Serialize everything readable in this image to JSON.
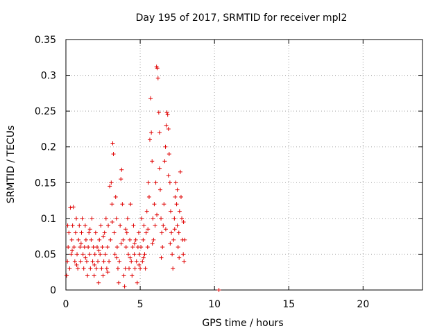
{
  "chart_data": {
    "type": "scatter",
    "title": "Day 195 of 2017, SRMTID for receiver mpl2",
    "xlabel": "GPS time / hours",
    "ylabel": "SRMTID / TECUs",
    "xlim": [
      0,
      24
    ],
    "ylim": [
      0,
      0.35
    ],
    "xticks": [
      0,
      5,
      10,
      15,
      20
    ],
    "xtick_labels": [
      "0",
      "5",
      "10",
      "15",
      "20"
    ],
    "yticks": [
      0,
      0.05,
      0.1,
      0.15,
      0.2,
      0.25,
      0.3,
      0.35
    ],
    "ytick_labels": [
      "0",
      "0.05",
      "0.1",
      "0.15",
      "0.2",
      "0.25",
      "0.3",
      "0.35"
    ],
    "grid": true,
    "marker": "+",
    "color": "#e00000",
    "series": [
      {
        "name": "SRMTID",
        "points": [
          [
            0.05,
            0.02
          ],
          [
            0.1,
            0.04
          ],
          [
            0.15,
            0.06
          ],
          [
            0.2,
            0.08
          ],
          [
            0.25,
            0.03
          ],
          [
            0.3,
            0.115
          ],
          [
            0.35,
            0.05
          ],
          [
            0.4,
            0.07
          ],
          [
            0.45,
            0.09
          ],
          [
            0.5,
            0.116
          ],
          [
            0.55,
            0.06
          ],
          [
            0.6,
            0.04
          ],
          [
            0.65,
            0.08
          ],
          [
            0.7,
            0.1
          ],
          [
            0.75,
            0.05
          ],
          [
            0.8,
            0.03
          ],
          [
            0.85,
            0.07
          ],
          [
            0.9,
            0.09
          ],
          [
            0.95,
            0.06
          ],
          [
            1.0,
            0.04
          ],
          [
            1.05,
            0.08
          ],
          [
            1.1,
            0.1
          ],
          [
            1.15,
            0.05
          ],
          [
            1.2,
            0.03
          ],
          [
            1.25,
            0.06
          ],
          [
            1.3,
            0.09
          ],
          [
            1.35,
            0.07
          ],
          [
            1.4,
            0.04
          ],
          [
            1.45,
            0.02
          ],
          [
            1.5,
            0.06
          ],
          [
            1.55,
            0.08
          ],
          [
            1.6,
            0.05
          ],
          [
            1.65,
            0.03
          ],
          [
            1.7,
            0.07
          ],
          [
            1.75,
            0.1
          ],
          [
            1.8,
            0.04
          ],
          [
            1.85,
            0.06
          ],
          [
            1.9,
            0.02
          ],
          [
            1.95,
            0.05
          ],
          [
            2.0,
            0.08
          ],
          [
            2.05,
            0.03
          ],
          [
            2.1,
            0.06
          ],
          [
            2.15,
            0.04
          ],
          [
            2.2,
            0.01
          ],
          [
            2.25,
            0.07
          ],
          [
            2.3,
            0.05
          ],
          [
            2.35,
            0.09
          ],
          [
            2.4,
            0.03
          ],
          [
            2.45,
            0.06
          ],
          [
            2.5,
            0.02
          ],
          [
            2.55,
            0.04
          ],
          [
            2.6,
            0.08
          ],
          [
            2.65,
            0.05
          ],
          [
            2.7,
            0.1
          ],
          [
            2.75,
            0.03
          ],
          [
            2.8,
            0.06
          ],
          [
            2.85,
            0.09
          ],
          [
            2.9,
            0.04
          ],
          [
            2.95,
            0.145
          ],
          [
            3.0,
            0.07
          ],
          [
            3.05,
            0.15
          ],
          [
            3.1,
            0.12
          ],
          [
            3.15,
            0.205
          ],
          [
            3.2,
            0.19
          ],
          [
            3.25,
            0.08
          ],
          [
            3.3,
            0.05
          ],
          [
            3.35,
            0.13
          ],
          [
            3.4,
            0.1
          ],
          [
            3.45,
            0.06
          ],
          [
            3.5,
            0.03
          ],
          [
            3.55,
            0.01
          ],
          [
            3.6,
            0.04
          ],
          [
            3.65,
            0.09
          ],
          [
            3.7,
            0.155
          ],
          [
            3.75,
            0.168
          ],
          [
            3.8,
            0.12
          ],
          [
            3.85,
            0.07
          ],
          [
            3.9,
            0.02
          ],
          [
            3.95,
            0.005
          ],
          [
            4.0,
            0.03
          ],
          [
            4.05,
            0.06
          ],
          [
            4.1,
            0.08
          ],
          [
            4.15,
            0.1
          ],
          [
            4.2,
            0.05
          ],
          [
            4.25,
            0.03
          ],
          [
            4.3,
            0.07
          ],
          [
            4.35,
            0.12
          ],
          [
            4.4,
            0.04
          ],
          [
            4.45,
            0.02
          ],
          [
            4.5,
            0.06
          ],
          [
            4.55,
            0.09
          ],
          [
            4.6,
            0.05
          ],
          [
            4.65,
            0.03
          ],
          [
            4.7,
            0.07
          ],
          [
            4.75,
            0.04
          ],
          [
            4.8,
            0.01
          ],
          [
            4.85,
            0.06
          ],
          [
            4.9,
            0.08
          ],
          [
            4.95,
            0.05
          ],
          [
            5.0,
            0.03
          ],
          [
            5.05,
            0.06
          ],
          [
            5.1,
            0.1
          ],
          [
            5.15,
            0.04
          ],
          [
            5.2,
            0.07
          ],
          [
            5.25,
            0.09
          ],
          [
            5.3,
            0.05
          ],
          [
            5.35,
            0.03
          ],
          [
            5.4,
            0.08
          ],
          [
            5.45,
            0.11
          ],
          [
            5.5,
            0.06
          ],
          [
            5.55,
            0.15
          ],
          [
            5.6,
            0.13
          ],
          [
            5.65,
            0.21
          ],
          [
            5.7,
            0.268
          ],
          [
            5.75,
            0.22
          ],
          [
            5.8,
            0.18
          ],
          [
            5.85,
            0.1
          ],
          [
            5.9,
            0.07
          ],
          [
            5.95,
            0.12
          ],
          [
            6.0,
            0.09
          ],
          [
            6.05,
            0.15
          ],
          [
            6.1,
            0.312
          ],
          [
            6.15,
            0.31
          ],
          [
            6.2,
            0.296
          ],
          [
            6.25,
            0.248
          ],
          [
            6.3,
            0.22
          ],
          [
            6.35,
            0.14
          ],
          [
            6.4,
            0.1
          ],
          [
            6.45,
            0.08
          ],
          [
            6.5,
            0.06
          ],
          [
            6.55,
            0.09
          ],
          [
            6.6,
            0.12
          ],
          [
            6.65,
            0.18
          ],
          [
            6.7,
            0.2
          ],
          [
            6.75,
            0.23
          ],
          [
            6.8,
            0.248
          ],
          [
            6.85,
            0.245
          ],
          [
            6.9,
            0.225
          ],
          [
            6.95,
            0.19
          ],
          [
            7.0,
            0.15
          ],
          [
            7.05,
            0.11
          ],
          [
            7.1,
            0.08
          ],
          [
            7.15,
            0.05
          ],
          [
            7.2,
            0.03
          ],
          [
            7.25,
            0.07
          ],
          [
            7.3,
            0.1
          ],
          [
            7.35,
            0.13
          ],
          [
            7.4,
            0.15
          ],
          [
            7.45,
            0.12
          ],
          [
            7.5,
            0.09
          ],
          [
            7.55,
            0.06
          ],
          [
            7.6,
            0.08
          ],
          [
            7.65,
            0.11
          ],
          [
            7.7,
            0.165
          ],
          [
            7.75,
            0.13
          ],
          [
            7.8,
            0.1
          ],
          [
            7.85,
            0.07
          ],
          [
            7.9,
            0.05
          ],
          [
            7.95,
            0.04
          ],
          [
            8.0,
            0.07
          ],
          [
            0.12,
            0.09
          ],
          [
            0.42,
            0.055
          ],
          [
            0.72,
            0.035
          ],
          [
            1.02,
            0.065
          ],
          [
            1.32,
            0.045
          ],
          [
            1.62,
            0.085
          ],
          [
            1.92,
            0.035
          ],
          [
            2.22,
            0.055
          ],
          [
            2.52,
            0.075
          ],
          [
            2.82,
            0.025
          ],
          [
            3.12,
            0.095
          ],
          [
            3.42,
            0.045
          ],
          [
            3.72,
            0.065
          ],
          [
            4.02,
            0.085
          ],
          [
            4.32,
            0.045
          ],
          [
            4.62,
            0.065
          ],
          [
            4.92,
            0.035
          ],
          [
            5.22,
            0.045
          ],
          [
            5.52,
            0.085
          ],
          [
            5.82,
            0.065
          ],
          [
            6.12,
            0.105
          ],
          [
            6.42,
            0.045
          ],
          [
            6.72,
            0.085
          ],
          [
            7.02,
            0.065
          ],
          [
            7.32,
            0.085
          ],
          [
            7.62,
            0.045
          ],
          [
            7.92,
            0.095
          ],
          [
            6.9,
            0.16
          ],
          [
            7.5,
            0.14
          ],
          [
            6.3,
            0.17
          ],
          [
            10.3,
            0.0
          ]
        ]
      }
    ]
  }
}
